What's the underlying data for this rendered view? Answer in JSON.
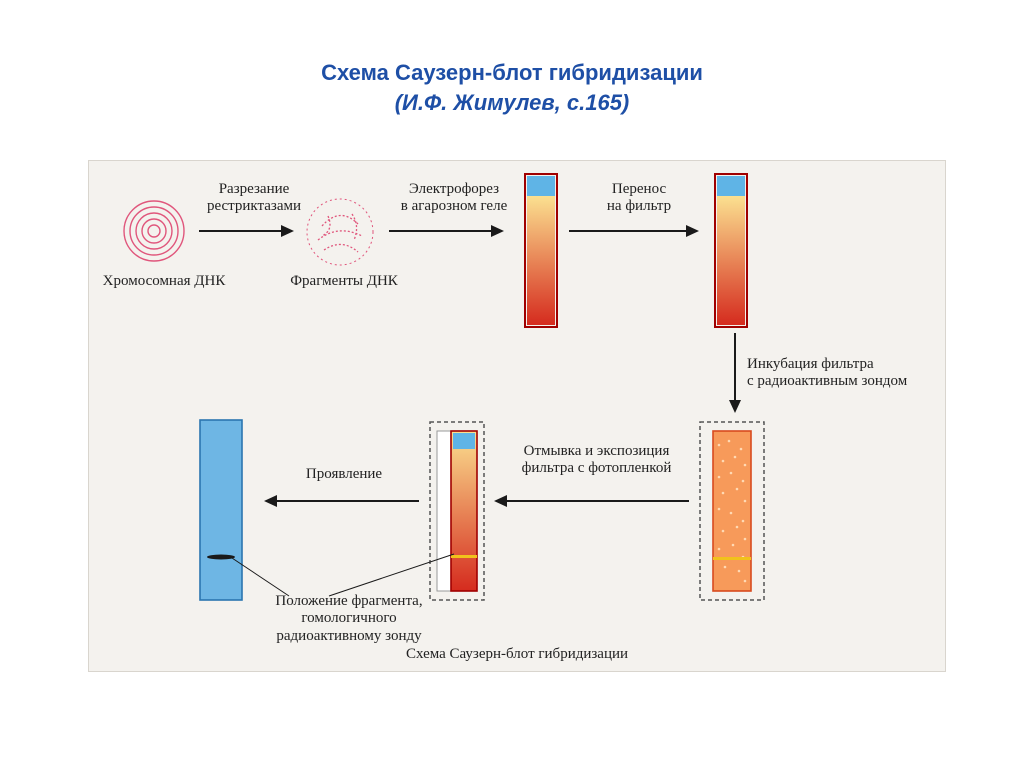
{
  "title": {
    "line1": "Схема Саузерн-блот гибридизации",
    "line2": "(И.Ф. Жимулев, с.165)",
    "color": "#1e4fa6",
    "fontsize": 22
  },
  "diagram": {
    "background_color": "#f4f2ee",
    "border_color": "#d9d5ce",
    "label_font_family": "Georgia, Times New Roman, serif",
    "label_color": "#222222",
    "label_fontsize": 15,
    "arrow_color": "#1a1a1a",
    "arrow_stroke_width": 2,
    "dna_spiral_color": "#e0567c",
    "fragment_dot_color": "#e0567c",
    "gel_border_color": "#a00000",
    "gel_top_color": "#5fb4e6",
    "gel_grad_top": "#fbe090",
    "gel_grad_bottom": "#d52b1e",
    "filter_fill": "#f79a5a",
    "filter_edge": "#d84b1f",
    "filter_stipple": "#ffd9b3",
    "film_fill": "#6eb6e4",
    "film_border": "#2a76b0",
    "film_band_color": "#1a1a1a",
    "filmbox_border": "#555555",
    "filmbox_dash": "4 3",
    "gel_small_band": "#f1c21b"
  },
  "labels": {
    "chrom_dna": "Хромосомная ДНК",
    "restriction": "Разрезание\nрестриктазами",
    "fragments": "Фрагменты ДНК",
    "electrophoresis": "Электрофорез\nв агарозном геле",
    "transfer": "Перенос\nна фильтр",
    "incubation": "Инкубация фильтра\nс радиоактивным зондом",
    "wash_expose": "Отмывка и экспозиция\nфильтра с фотопленкой",
    "develop": "Проявление",
    "band_pos": "Положение фрагмента,\nгомологичного\nрадиоактивному зонду",
    "caption": "Схема Саузерн-блот гибридизации"
  }
}
